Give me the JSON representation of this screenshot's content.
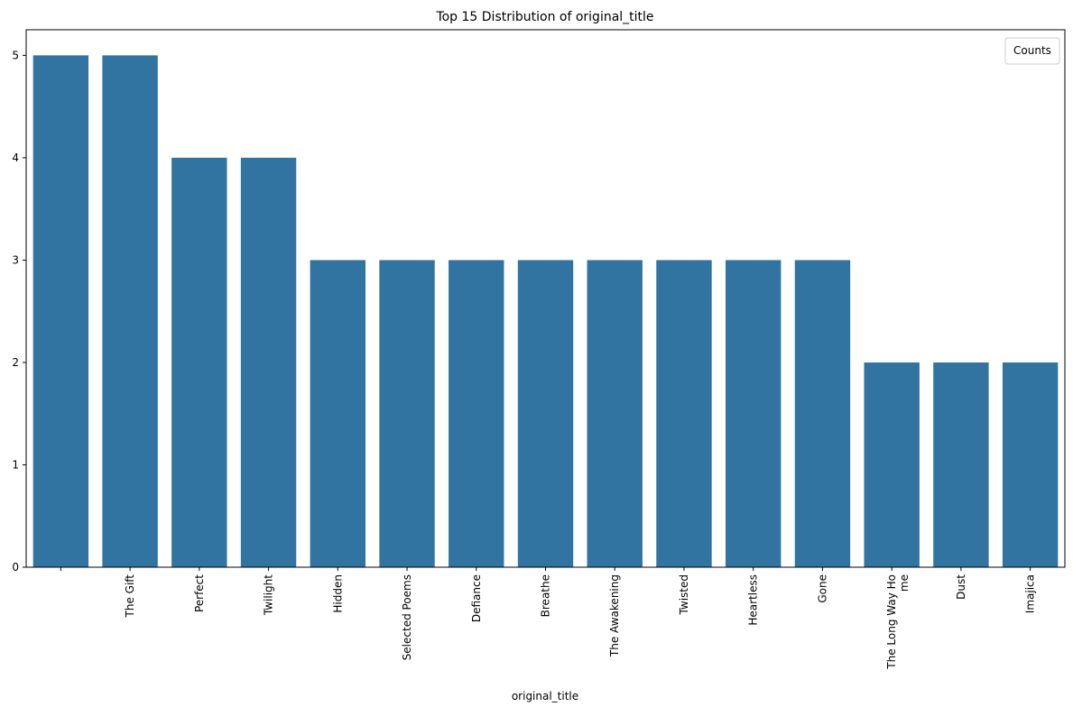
{
  "chart_data": {
    "type": "bar",
    "title": "Top 15 Distribution of original_title",
    "xlabel": "original_title",
    "ylabel": "",
    "categories": [
      "",
      "The Gift",
      "Perfect",
      "Twilight",
      "Hidden",
      "Selected Poems",
      "Defiance",
      "Breathe",
      "The Awakening",
      "Twisted",
      "Heartless",
      "Gone",
      "The Long Way Ho\nme",
      "Dust",
      "Imajica"
    ],
    "values": [
      5,
      5,
      4,
      4,
      3,
      3,
      3,
      3,
      3,
      3,
      3,
      3,
      2,
      2,
      2
    ],
    "ylim": [
      0,
      5.25
    ],
    "yticks": [
      0,
      1,
      2,
      3,
      4,
      5
    ],
    "legend": {
      "title": "Counts",
      "placement": "top-right"
    },
    "grid": false,
    "bar_color": "#3274a1"
  }
}
